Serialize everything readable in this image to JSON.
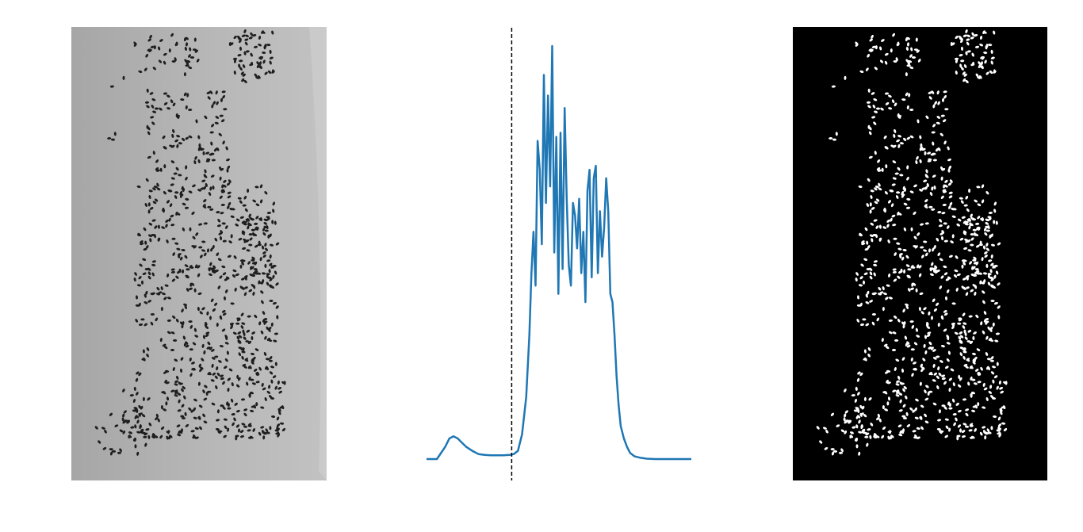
{
  "figure": {
    "panels": [
      "grayscale-image",
      "histogram",
      "binary-image"
    ]
  },
  "colors": {
    "histogram_line": "#1f77b4",
    "threshold_line": "#000000",
    "grayscale_background": "#b4b4b4",
    "grayscale_seed": "#1e1e1e",
    "binary_background": "#000000",
    "binary_seed": "#ffffff"
  },
  "chart_data": {
    "type": "line",
    "title": "",
    "xlabel": "",
    "ylabel": "",
    "axes_visible": false,
    "grid": false,
    "threshold": {
      "x": 82,
      "style": "dashed"
    },
    "xlim": [
      0,
      255
    ],
    "ylim": [
      0,
      1
    ],
    "series": [
      {
        "x": [
          0,
          10,
          18,
          22,
          26,
          30,
          34,
          38,
          44,
          50,
          56,
          62,
          68,
          74,
          80,
          84,
          88,
          92,
          96,
          99,
          101,
          103,
          105,
          107,
          109,
          111,
          113,
          115,
          117,
          119,
          121,
          123,
          125,
          127,
          129,
          131,
          133,
          135,
          137,
          139,
          141,
          143,
          145,
          147,
          149,
          151,
          153,
          155,
          157,
          159,
          161,
          163,
          165,
          167,
          169,
          171,
          173,
          175,
          177,
          179,
          181,
          183,
          185,
          187,
          190,
          193,
          196,
          200,
          206,
          212,
          220,
          235,
          255
        ],
        "values": [
          0.0,
          0.0,
          0.03,
          0.05,
          0.055,
          0.05,
          0.04,
          0.03,
          0.02,
          0.012,
          0.01,
          0.009,
          0.009,
          0.009,
          0.01,
          0.012,
          0.02,
          0.06,
          0.15,
          0.3,
          0.45,
          0.55,
          0.42,
          0.77,
          0.7,
          0.52,
          0.93,
          0.62,
          0.88,
          0.66,
          1.0,
          0.5,
          0.78,
          0.4,
          0.79,
          0.46,
          0.85,
          0.63,
          0.47,
          0.42,
          0.62,
          0.59,
          0.51,
          0.63,
          0.45,
          0.55,
          0.38,
          0.65,
          0.7,
          0.44,
          0.68,
          0.71,
          0.45,
          0.6,
          0.49,
          0.56,
          0.68,
          0.6,
          0.4,
          0.38,
          0.3,
          0.2,
          0.13,
          0.08,
          0.05,
          0.03,
          0.015,
          0.007,
          0.003,
          0.001,
          0.0,
          0.0,
          0.0
        ]
      }
    ]
  }
}
